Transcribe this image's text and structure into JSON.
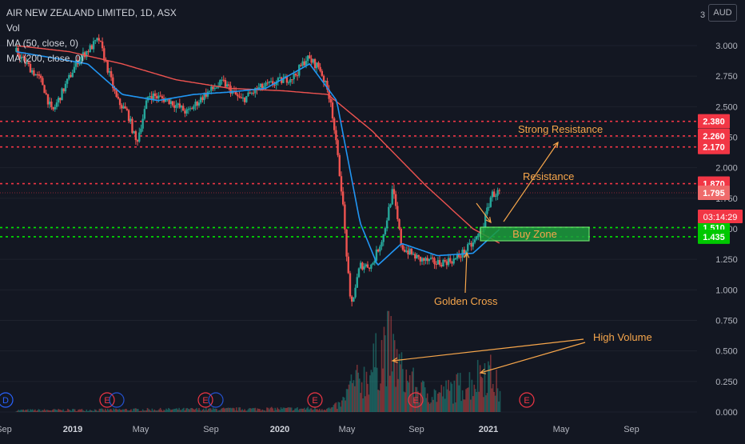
{
  "header": {
    "symbol_line": "AIR NEW ZEALAND LIMITED, 1D, ASX",
    "volume_label": "Vol",
    "ma50_label": "MA (50, close, 0)",
    "ma200_label": "MA (200, close, 0)"
  },
  "currency": "AUD",
  "countdown": "03:14:29",
  "colors": {
    "background": "#131722",
    "candle_up": "#26a69a",
    "candle_down": "#ef5350",
    "ma50": "#2196f3",
    "ma200": "#ef5350",
    "resistance_line": "#f23645",
    "support_line": "#00e600",
    "annotation": "#f7a64b",
    "buy_zone_fill": "#1c9c3c"
  },
  "chart_data": {
    "type": "candlestick",
    "y_ticks": [
      "3.000",
      "2.750",
      "2.500",
      "2.250",
      "2.000",
      "1.750",
      "1.500",
      "1.250",
      "1.000",
      "0.750",
      "0.500",
      "0.250",
      "0.000"
    ],
    "x_ticks": [
      "Sep",
      "2019",
      "May",
      "Sep",
      "2020",
      "May",
      "Sep",
      "2021",
      "May",
      "Sep"
    ],
    "price_levels": [
      {
        "label": "2.380",
        "value": 2.38,
        "kind": "resistance"
      },
      {
        "label": "2.260",
        "value": 2.26,
        "kind": "resistance"
      },
      {
        "label": "2.170",
        "value": 2.17,
        "kind": "resistance"
      },
      {
        "label": "1.870",
        "value": 1.87,
        "kind": "resistance"
      },
      {
        "label": "1.795",
        "value": 1.795,
        "kind": "current"
      },
      {
        "label": "1.510",
        "value": 1.51,
        "kind": "support"
      },
      {
        "label": "1.435",
        "value": 1.435,
        "kind": "support"
      }
    ],
    "earnings_markers": [
      "D",
      "E",
      "E",
      "E",
      "E",
      "E"
    ],
    "annotations": {
      "strong_resistance": "Strong Resistance",
      "resistance": "Resistance",
      "buy_zone": "Buy Zone",
      "golden_cross": "Golden Cross",
      "high_volume": "High Volume"
    },
    "price_path": [
      [
        "2018-09-01",
        2.95
      ],
      [
        "2018-10-15",
        2.7
      ],
      [
        "2018-11-01",
        2.45
      ],
      [
        "2018-12-15",
        2.88
      ],
      [
        "2019-01-20",
        3.05
      ],
      [
        "2019-02-20",
        2.55
      ],
      [
        "2019-03-10",
        2.45
      ],
      [
        "2019-03-25",
        2.2
      ],
      [
        "2019-04-15",
        2.6
      ],
      [
        "2019-05-20",
        2.55
      ],
      [
        "2019-06-20",
        2.45
      ],
      [
        "2019-07-20",
        2.6
      ],
      [
        "2019-08-20",
        2.7
      ],
      [
        "2019-09-20",
        2.55
      ],
      [
        "2019-10-20",
        2.65
      ],
      [
        "2019-11-20",
        2.7
      ],
      [
        "2019-12-20",
        2.75
      ],
      [
        "2020-01-10",
        2.9
      ],
      [
        "2020-02-01",
        2.82
      ],
      [
        "2020-02-20",
        2.55
      ],
      [
        "2020-03-10",
        1.8
      ],
      [
        "2020-03-25",
        0.85
      ],
      [
        "2020-04-10",
        1.2
      ],
      [
        "2020-04-30",
        1.2
      ],
      [
        "2020-05-20",
        1.45
      ],
      [
        "2020-06-05",
        1.82
      ],
      [
        "2020-06-20",
        1.35
      ],
      [
        "2020-07-20",
        1.25
      ],
      [
        "2020-08-20",
        1.22
      ],
      [
        "2020-09-20",
        1.25
      ],
      [
        "2020-10-20",
        1.38
      ],
      [
        "2020-11-05",
        1.5
      ],
      [
        "2020-11-20",
        1.78
      ],
      [
        "2020-12-05",
        1.8
      ]
    ],
    "ma50_path": [
      [
        "2018-09-01",
        2.95
      ],
      [
        "2019-01-01",
        2.85
      ],
      [
        "2019-03-01",
        2.6
      ],
      [
        "2019-05-01",
        2.55
      ],
      [
        "2019-07-01",
        2.6
      ],
      [
        "2019-09-01",
        2.62
      ],
      [
        "2019-11-01",
        2.65
      ],
      [
        "2020-01-15",
        2.85
      ],
      [
        "2020-03-01",
        2.55
      ],
      [
        "2020-04-10",
        1.55
      ],
      [
        "2020-05-10",
        1.2
      ],
      [
        "2020-06-20",
        1.38
      ],
      [
        "2020-08-20",
        1.28
      ],
      [
        "2020-10-20",
        1.3
      ],
      [
        "2020-12-05",
        1.5
      ]
    ],
    "ma200_path": [
      [
        "2018-09-01",
        3.0
      ],
      [
        "2018-12-01",
        2.95
      ],
      [
        "2019-03-01",
        2.85
      ],
      [
        "2019-06-01",
        2.72
      ],
      [
        "2019-09-01",
        2.65
      ],
      [
        "2019-12-01",
        2.63
      ],
      [
        "2020-02-15",
        2.6
      ],
      [
        "2020-05-01",
        2.3
      ],
      [
        "2020-08-01",
        1.85
      ],
      [
        "2020-10-20",
        1.5
      ],
      [
        "2020-12-05",
        1.38
      ]
    ],
    "volume_path": [
      [
        "2018-09-01",
        0.02
      ],
      [
        "2020-02-20",
        0.04
      ],
      [
        "2020-03-10",
        0.1
      ],
      [
        "2020-03-25",
        0.3
      ],
      [
        "2020-04-20",
        0.4
      ],
      [
        "2020-05-10",
        0.6
      ],
      [
        "2020-05-25",
        0.8
      ],
      [
        "2020-06-20",
        0.45
      ],
      [
        "2020-07-20",
        0.25
      ],
      [
        "2020-08-20",
        0.2
      ],
      [
        "2020-09-20",
        0.28
      ],
      [
        "2020-10-20",
        0.35
      ],
      [
        "2020-11-10",
        0.5
      ],
      [
        "2020-11-25",
        0.38
      ],
      [
        "2020-12-05",
        0.2
      ]
    ]
  }
}
